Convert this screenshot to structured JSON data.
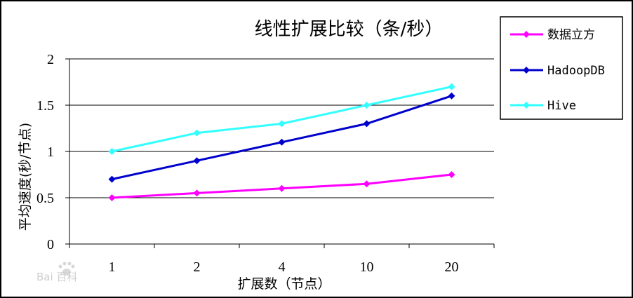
{
  "chart_data": {
    "type": "line",
    "title": "线性扩展比较（条/秒）",
    "xlabel": "扩展数（节点）",
    "ylabel": "平均速度(秒/节点)",
    "categories": [
      "1",
      "2",
      "4",
      "10",
      "20"
    ],
    "yticks": [
      "0",
      "0.5",
      "1",
      "1.5",
      "2"
    ],
    "ylim": [
      0,
      2
    ],
    "grid": true,
    "legend_position": "top-right",
    "series": [
      {
        "name": "数据立方",
        "color": "#ff00ff",
        "values": [
          0.5,
          0.55,
          0.6,
          0.65,
          0.75
        ]
      },
      {
        "name": "HadoopDB",
        "color": "#0000cc",
        "values": [
          0.7,
          0.9,
          1.1,
          1.3,
          1.6
        ]
      },
      {
        "name": "Hive",
        "color": "#33ffff",
        "values": [
          1.0,
          1.2,
          1.3,
          1.5,
          1.7
        ]
      }
    ]
  },
  "watermark": {
    "text": "Bai 百科",
    "icon": "paw-icon"
  }
}
